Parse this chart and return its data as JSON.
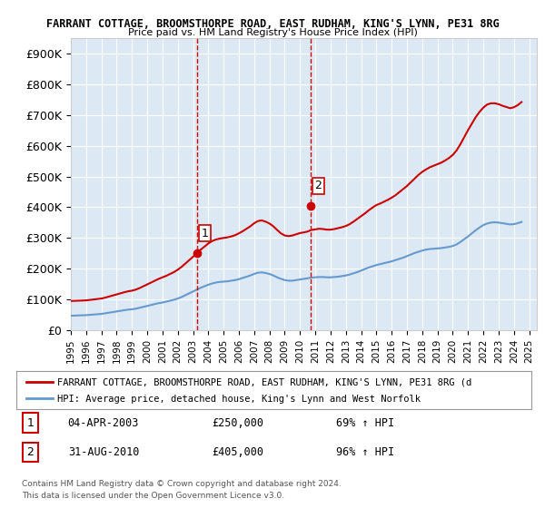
{
  "title_line1": "FARRANT COTTAGE, BROOMSTHORPE ROAD, EAST RUDHAM, KING'S LYNN, PE31 8RG",
  "title_line2": "Price paid vs. HM Land Registry's House Price Index (HPI)",
  "ylabel_ticks": [
    "£0",
    "£100K",
    "£200K",
    "£300K",
    "£400K",
    "£500K",
    "£600K",
    "£700K",
    "£800K",
    "£900K"
  ],
  "ytick_values": [
    0,
    100000,
    200000,
    300000,
    400000,
    500000,
    600000,
    700000,
    800000,
    900000
  ],
  "ylim": [
    0,
    950000
  ],
  "xlim_start": 1995.0,
  "xlim_end": 2025.5,
  "background_color": "#ffffff",
  "plot_bg_color": "#dce9f5",
  "grid_color": "#ffffff",
  "red_line_color": "#cc0000",
  "blue_line_color": "#6699cc",
  "vline_color": "#cc0000",
  "vline_style": "--",
  "sale1_x": 2003.25,
  "sale1_y": 250000,
  "sale2_x": 2010.67,
  "sale2_y": 405000,
  "marker_color": "#cc0000",
  "sale1_label": "1",
  "sale2_label": "2",
  "legend_red_label": "FARRANT COTTAGE, BROOMSTHORPE ROAD, EAST RUDHAM, KING'S LYNN, PE31 8RG (d",
  "legend_blue_label": "HPI: Average price, detached house, King's Lynn and West Norfolk",
  "table_rows": [
    {
      "num": "1",
      "date": "04-APR-2003",
      "price": "£250,000",
      "hpi": "69% ↑ HPI"
    },
    {
      "num": "2",
      "date": "31-AUG-2010",
      "price": "£405,000",
      "hpi": "96% ↑ HPI"
    }
  ],
  "footnote1": "Contains HM Land Registry data © Crown copyright and database right 2024.",
  "footnote2": "This data is licensed under the Open Government Licence v3.0.",
  "xtick_years": [
    1995,
    1996,
    1997,
    1998,
    1999,
    2000,
    2001,
    2002,
    2003,
    2004,
    2005,
    2006,
    2007,
    2008,
    2009,
    2010,
    2011,
    2012,
    2013,
    2014,
    2015,
    2016,
    2017,
    2018,
    2019,
    2020,
    2021,
    2022,
    2023,
    2024,
    2025
  ],
  "hpi_data_x": [
    1995.0,
    1995.25,
    1995.5,
    1995.75,
    1996.0,
    1996.25,
    1996.5,
    1996.75,
    1997.0,
    1997.25,
    1997.5,
    1997.75,
    1998.0,
    1998.25,
    1998.5,
    1998.75,
    1999.0,
    1999.25,
    1999.5,
    1999.75,
    2000.0,
    2000.25,
    2000.5,
    2000.75,
    2001.0,
    2001.25,
    2001.5,
    2001.75,
    2002.0,
    2002.25,
    2002.5,
    2002.75,
    2003.0,
    2003.25,
    2003.5,
    2003.75,
    2004.0,
    2004.25,
    2004.5,
    2004.75,
    2005.0,
    2005.25,
    2005.5,
    2005.75,
    2006.0,
    2006.25,
    2006.5,
    2006.75,
    2007.0,
    2007.25,
    2007.5,
    2007.75,
    2008.0,
    2008.25,
    2008.5,
    2008.75,
    2009.0,
    2009.25,
    2009.5,
    2009.75,
    2010.0,
    2010.25,
    2010.5,
    2010.75,
    2011.0,
    2011.25,
    2011.5,
    2011.75,
    2012.0,
    2012.25,
    2012.5,
    2012.75,
    2013.0,
    2013.25,
    2013.5,
    2013.75,
    2014.0,
    2014.25,
    2014.5,
    2014.75,
    2015.0,
    2015.25,
    2015.5,
    2015.75,
    2016.0,
    2016.25,
    2016.5,
    2016.75,
    2017.0,
    2017.25,
    2017.5,
    2017.75,
    2018.0,
    2018.25,
    2018.5,
    2018.75,
    2019.0,
    2019.25,
    2019.5,
    2019.75,
    2020.0,
    2020.25,
    2020.5,
    2020.75,
    2021.0,
    2021.25,
    2021.5,
    2021.75,
    2022.0,
    2022.25,
    2022.5,
    2022.75,
    2023.0,
    2023.25,
    2023.5,
    2023.75,
    2024.0,
    2024.25,
    2024.5
  ],
  "hpi_data_y": [
    47000,
    47500,
    48000,
    48500,
    49000,
    50000,
    51000,
    52000,
    53000,
    55000,
    57000,
    59000,
    61000,
    63000,
    65000,
    67000,
    68000,
    70000,
    73000,
    76000,
    79000,
    82000,
    85000,
    88000,
    90000,
    93000,
    96000,
    99000,
    103000,
    108000,
    114000,
    120000,
    126000,
    132000,
    138000,
    143000,
    148000,
    152000,
    155000,
    157000,
    158000,
    159000,
    161000,
    163000,
    166000,
    170000,
    174000,
    178000,
    183000,
    187000,
    188000,
    186000,
    183000,
    178000,
    172000,
    167000,
    163000,
    161000,
    161000,
    163000,
    165000,
    167000,
    169000,
    171000,
    172000,
    173000,
    173000,
    172000,
    172000,
    173000,
    174000,
    176000,
    178000,
    181000,
    185000,
    189000,
    194000,
    199000,
    204000,
    208000,
    212000,
    215000,
    218000,
    221000,
    224000,
    228000,
    232000,
    236000,
    241000,
    246000,
    251000,
    255000,
    259000,
    262000,
    264000,
    265000,
    266000,
    267000,
    269000,
    271000,
    274000,
    279000,
    287000,
    296000,
    305000,
    315000,
    325000,
    334000,
    342000,
    347000,
    350000,
    351000,
    350000,
    348000,
    346000,
    344000,
    345000,
    348000,
    352000
  ],
  "red_data_x": [
    1995.0,
    1995.25,
    1995.5,
    1995.75,
    1996.0,
    1996.25,
    1996.5,
    1996.75,
    1997.0,
    1997.25,
    1997.5,
    1997.75,
    1998.0,
    1998.25,
    1998.5,
    1998.75,
    1999.0,
    1999.25,
    1999.5,
    1999.75,
    2000.0,
    2000.25,
    2000.5,
    2000.75,
    2001.0,
    2001.25,
    2001.5,
    2001.75,
    2002.0,
    2002.25,
    2002.5,
    2002.75,
    2003.0,
    2003.25,
    2003.5,
    2003.75,
    2004.0,
    2004.25,
    2004.5,
    2004.75,
    2005.0,
    2005.25,
    2005.5,
    2005.75,
    2006.0,
    2006.25,
    2006.5,
    2006.75,
    2007.0,
    2007.25,
    2007.5,
    2007.75,
    2008.0,
    2008.25,
    2008.5,
    2008.75,
    2009.0,
    2009.25,
    2009.5,
    2009.75,
    2010.0,
    2010.25,
    2010.5,
    2010.75,
    2011.0,
    2011.25,
    2011.5,
    2011.75,
    2012.0,
    2012.25,
    2012.5,
    2012.75,
    2013.0,
    2013.25,
    2013.5,
    2013.75,
    2014.0,
    2014.25,
    2014.5,
    2014.75,
    2015.0,
    2015.25,
    2015.5,
    2015.75,
    2016.0,
    2016.25,
    2016.5,
    2016.75,
    2017.0,
    2017.25,
    2017.5,
    2017.75,
    2018.0,
    2018.25,
    2018.5,
    2018.75,
    2019.0,
    2019.25,
    2019.5,
    2019.75,
    2020.0,
    2020.25,
    2020.5,
    2020.75,
    2021.0,
    2021.25,
    2021.5,
    2021.75,
    2022.0,
    2022.25,
    2022.5,
    2022.75,
    2023.0,
    2023.25,
    2023.5,
    2023.75,
    2024.0,
    2024.25,
    2024.5
  ],
  "red_data_y": [
    95000,
    95500,
    96000,
    96500,
    97000,
    98500,
    100000,
    101500,
    103000,
    106000,
    109500,
    113000,
    116500,
    120000,
    123500,
    126500,
    128500,
    132000,
    137000,
    143000,
    149000,
    155000,
    161000,
    167000,
    172000,
    177000,
    183000,
    189000,
    197000,
    206000,
    217000,
    228000,
    239000,
    250000,
    262000,
    272000,
    282000,
    290000,
    295000,
    298000,
    300000,
    302000,
    305000,
    309000,
    315000,
    322000,
    330000,
    338000,
    348000,
    355000,
    357000,
    353000,
    347000,
    338000,
    326000,
    315000,
    308000,
    306000,
    308000,
    312000,
    316000,
    318000,
    321000,
    326000,
    328000,
    330000,
    329000,
    327000,
    327000,
    329000,
    332000,
    335000,
    339000,
    345000,
    353000,
    362000,
    371000,
    380000,
    390000,
    399000,
    407000,
    412000,
    418000,
    424000,
    431000,
    439000,
    449000,
    459000,
    469000,
    481000,
    493000,
    505000,
    515000,
    523000,
    530000,
    535000,
    540000,
    545000,
    552000,
    560000,
    570000,
    585000,
    605000,
    628000,
    651000,
    672000,
    693000,
    710000,
    724000,
    734000,
    738000,
    738000,
    735000,
    730000,
    726000,
    722000,
    725000,
    732000,
    742000
  ]
}
